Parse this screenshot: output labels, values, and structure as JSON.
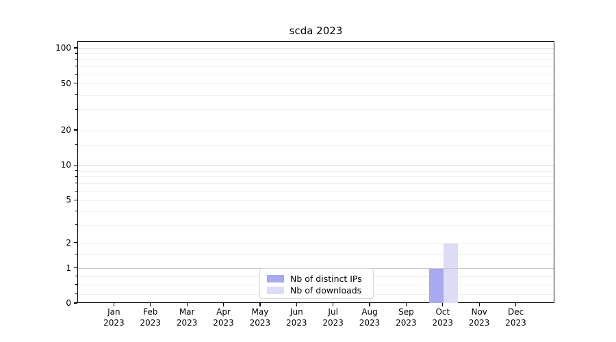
{
  "chart_data": {
    "type": "bar",
    "title": "scda 2023",
    "categories": [
      "Jan 2023",
      "Feb 2023",
      "Mar 2023",
      "Apr 2023",
      "May 2023",
      "Jun 2023",
      "Jul 2023",
      "Aug 2023",
      "Sep 2023",
      "Oct 2023",
      "Nov 2023",
      "Dec 2023"
    ],
    "series": [
      {
        "name": "Nb of distinct IPs",
        "color": "#a9a9ef",
        "values": [
          0,
          0,
          0,
          0,
          0,
          0,
          0,
          0,
          0,
          1,
          0,
          0
        ]
      },
      {
        "name": "Nb of downloads",
        "color": "#dcdcf7",
        "values": [
          0,
          0,
          0,
          0,
          0,
          0,
          0,
          0,
          0,
          2,
          0,
          0
        ]
      }
    ],
    "xlabel": "",
    "ylabel": "",
    "yscale": "asinh-symlog",
    "ylim": [
      0,
      114
    ],
    "yticks": [
      0,
      1,
      2,
      5,
      10,
      20,
      50,
      100
    ],
    "ytick_labels": [
      "0",
      "1",
      "2",
      "5",
      "10",
      "20",
      "50",
      "100"
    ],
    "decade_ticks": [
      1,
      10,
      100
    ],
    "minor_gridline_values": [
      0.25,
      0.5,
      0.75,
      1.5,
      3,
      4,
      6,
      7,
      8,
      9,
      15,
      30,
      40,
      60,
      70,
      80,
      90
    ],
    "grid": "horizontal",
    "legend_position": "inside-bottom-center"
  },
  "colors": {
    "bar_distinct_ips": "#a9a9ef",
    "bar_downloads": "#dcdcf7",
    "major_grid": "#c9c9c9",
    "minor_grid": "#efefef",
    "axis": "#000000",
    "legend_border": "#d9d9d9",
    "background": "#ffffff",
    "text": "#000000"
  }
}
